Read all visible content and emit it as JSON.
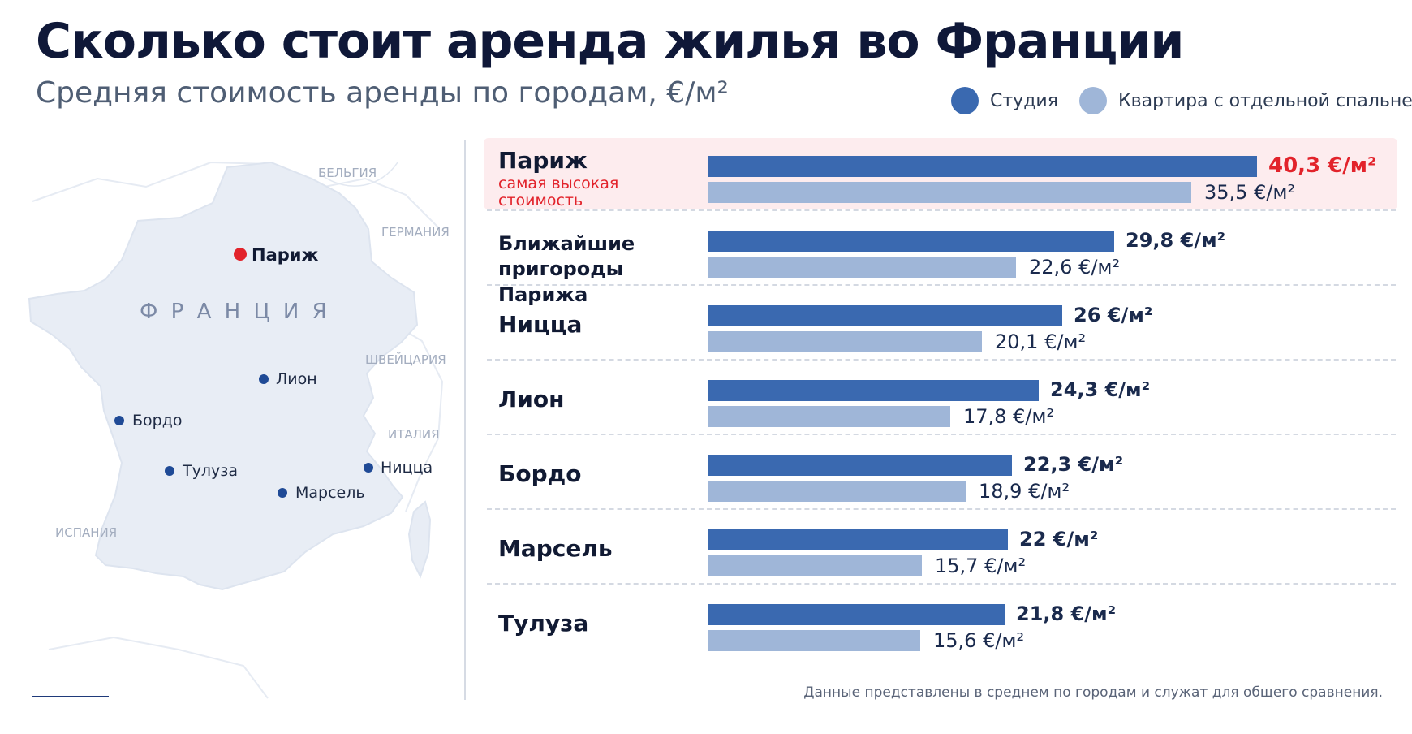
{
  "title": "Сколько стоит аренда жилья во Франции",
  "subtitle": "Средняя стоимость аренды по городам, €/м²",
  "colors": {
    "studio": "#3a69b0",
    "apartment": "#9fb6d8",
    "highlight": "#e2232b",
    "highlight_bg": "#fdecee"
  },
  "legend": [
    {
      "label": "Студия",
      "color": "#3a69b0"
    },
    {
      "label": "Квартира с отдельной спальней",
      "color": "#9fb6d8"
    }
  ],
  "map": {
    "country": "Ф Р А Н Ц И Я",
    "neighbors": [
      "БЕЛЬГИЯ",
      "ГЕРМАНИЯ",
      "ШВЕЙЦАРИЯ",
      "ИТАЛИЯ",
      "ИСПАНИЯ"
    ],
    "cities": [
      {
        "name": "Париж",
        "highlight": true
      },
      {
        "name": "Лион",
        "highlight": false
      },
      {
        "name": "Бордо",
        "highlight": false
      },
      {
        "name": "Тулуза",
        "highlight": false
      },
      {
        "name": "Ницца",
        "highlight": false
      },
      {
        "name": "Марсель",
        "highlight": false
      }
    ]
  },
  "chart_data": {
    "type": "bar",
    "orientation": "horizontal",
    "unit": "€/м²",
    "categories": [
      "Париж",
      "Ближайшие пригороды Парижа",
      "Ницца",
      "Лион",
      "Бордо",
      "Марсель",
      "Тулуза"
    ],
    "series": [
      {
        "name": "Студия",
        "values": [
          40.3,
          29.8,
          26,
          24.3,
          22.3,
          22,
          21.8
        ]
      },
      {
        "name": "Квартира с отдельной спальней",
        "values": [
          35.5,
          22.6,
          20.1,
          17.8,
          18.9,
          15.7,
          15.6
        ]
      }
    ],
    "value_labels": {
      "studio": [
        "40,3 €/м²",
        "29,8 €/м²",
        "26 €/м²",
        "24,3 €/м²",
        "22,3 €/м²",
        "22 €/м²",
        "21,8 €/м²"
      ],
      "apartment": [
        "35,5 €/м²",
        "22,6 €/м²",
        "20,1 €/м²",
        "17,8 €/м²",
        "18,9 €/м²",
        "15,7 €/м²",
        "15,6 €/м²"
      ]
    },
    "category_display": [
      [
        "Париж"
      ],
      [
        "Ближайшие",
        "пригороды Парижа"
      ],
      [
        "Ницца"
      ],
      [
        "Лион"
      ],
      [
        "Бордо"
      ],
      [
        "Марсель"
      ],
      [
        "Тулуза"
      ]
    ],
    "highlight": {
      "index": 0,
      "note_lines": [
        "самая высокая",
        "стоимость"
      ]
    },
    "xlim": [
      0,
      42
    ],
    "grid": false,
    "legend_position": "top-right"
  },
  "footnote": "Данные представлены в среднем по городам и служат для общего сравнения."
}
